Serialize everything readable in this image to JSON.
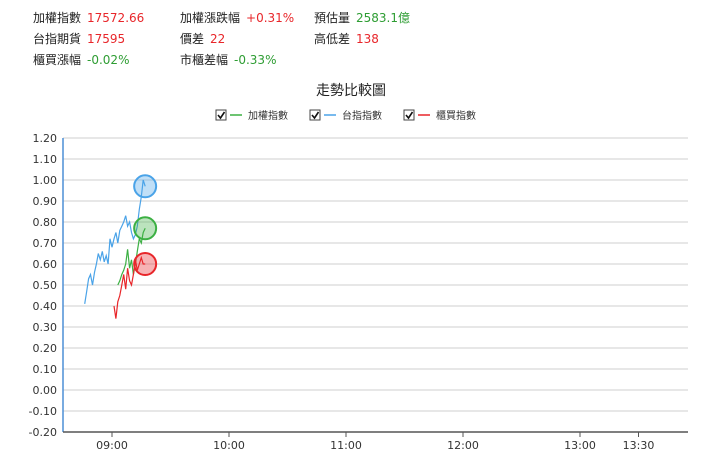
{
  "stats": {
    "weighted_index": {
      "label": "加權指數",
      "value": "17572.66"
    },
    "weighted_change": {
      "label": "加權漲跌幅",
      "value": "+0.31%"
    },
    "est_volume": {
      "label": "預估量",
      "value": "2583.1億"
    },
    "futures": {
      "label": "台指期貨",
      "value": "17595"
    },
    "basis": {
      "label": "價差",
      "value": "22"
    },
    "high_low_diff": {
      "label": "高低差",
      "value": "138"
    },
    "otc_change": {
      "label": "櫃買漲幅",
      "value": "-0.02%"
    },
    "otc_spread": {
      "label": "市櫃差幅",
      "value": "-0.33%"
    }
  },
  "colors": {
    "red": "#e8262a",
    "green": "#2e9d33",
    "weighted_line": "#3cb043",
    "futures_line": "#4aa3e8",
    "otc_line": "#e8262a",
    "grid": "#cfcfcf",
    "axis": "#4d8fd6"
  },
  "chart_data": {
    "type": "line",
    "title": "走勢比較圖",
    "legend_placement": "top-center",
    "xlabel": "",
    "ylabel": "",
    "ylim": [
      -0.2,
      1.2
    ],
    "y_ticks": [
      "1.20",
      "1.10",
      "1.00",
      "0.90",
      "0.80",
      "0.70",
      "0.60",
      "0.50",
      "0.40",
      "0.30",
      "0.20",
      "0.10",
      "0.00",
      "-0.10",
      "-0.20"
    ],
    "x_ticks": [
      "09:00",
      "10:00",
      "11:00",
      "12:00",
      "13:00",
      "13:30"
    ],
    "grid": "horizontal",
    "series": [
      {
        "name": "加權指數",
        "color_key": "weighted_line",
        "x": [
          "09:03",
          "09:04",
          "09:05",
          "09:06",
          "09:07",
          "09:08",
          "09:09",
          "09:10",
          "09:11",
          "09:12",
          "09:13",
          "09:14",
          "09:15",
          "09:16",
          "09:17"
        ],
        "values": [
          0.5,
          0.52,
          0.55,
          0.57,
          0.6,
          0.67,
          0.58,
          0.62,
          0.55,
          0.6,
          0.66,
          0.72,
          0.7,
          0.75,
          0.77
        ],
        "marker_value": 0.77
      },
      {
        "name": "台指指數",
        "color_key": "futures_line",
        "x": [
          "08:46",
          "08:47",
          "08:48",
          "08:49",
          "08:50",
          "08:51",
          "08:52",
          "08:53",
          "08:54",
          "08:55",
          "08:56",
          "08:57",
          "08:58",
          "08:59",
          "09:00",
          "09:01",
          "09:02",
          "09:03",
          "09:04",
          "09:05",
          "09:06",
          "09:07",
          "09:08",
          "09:09",
          "09:10",
          "09:11",
          "09:12",
          "09:13",
          "09:14",
          "09:15",
          "09:16",
          "09:17"
        ],
        "values": [
          0.41,
          0.47,
          0.53,
          0.55,
          0.5,
          0.56,
          0.6,
          0.65,
          0.62,
          0.66,
          0.61,
          0.64,
          0.6,
          0.72,
          0.68,
          0.72,
          0.75,
          0.7,
          0.76,
          0.78,
          0.8,
          0.83,
          0.78,
          0.8,
          0.75,
          0.72,
          0.74,
          0.78,
          0.86,
          0.92,
          1.0,
          0.97
        ],
        "marker_value": 0.97
      },
      {
        "name": "櫃買指數",
        "color_key": "otc_line",
        "x": [
          "09:01",
          "09:02",
          "09:03",
          "09:04",
          "09:05",
          "09:06",
          "09:07",
          "09:08",
          "09:09",
          "09:10",
          "09:11",
          "09:12",
          "09:13",
          "09:14",
          "09:15",
          "09:16",
          "09:17"
        ],
        "values": [
          0.4,
          0.34,
          0.42,
          0.45,
          0.5,
          0.55,
          0.48,
          0.58,
          0.52,
          0.5,
          0.55,
          0.62,
          0.57,
          0.6,
          0.63,
          0.6,
          0.6
        ],
        "marker_value": 0.6
      }
    ]
  }
}
